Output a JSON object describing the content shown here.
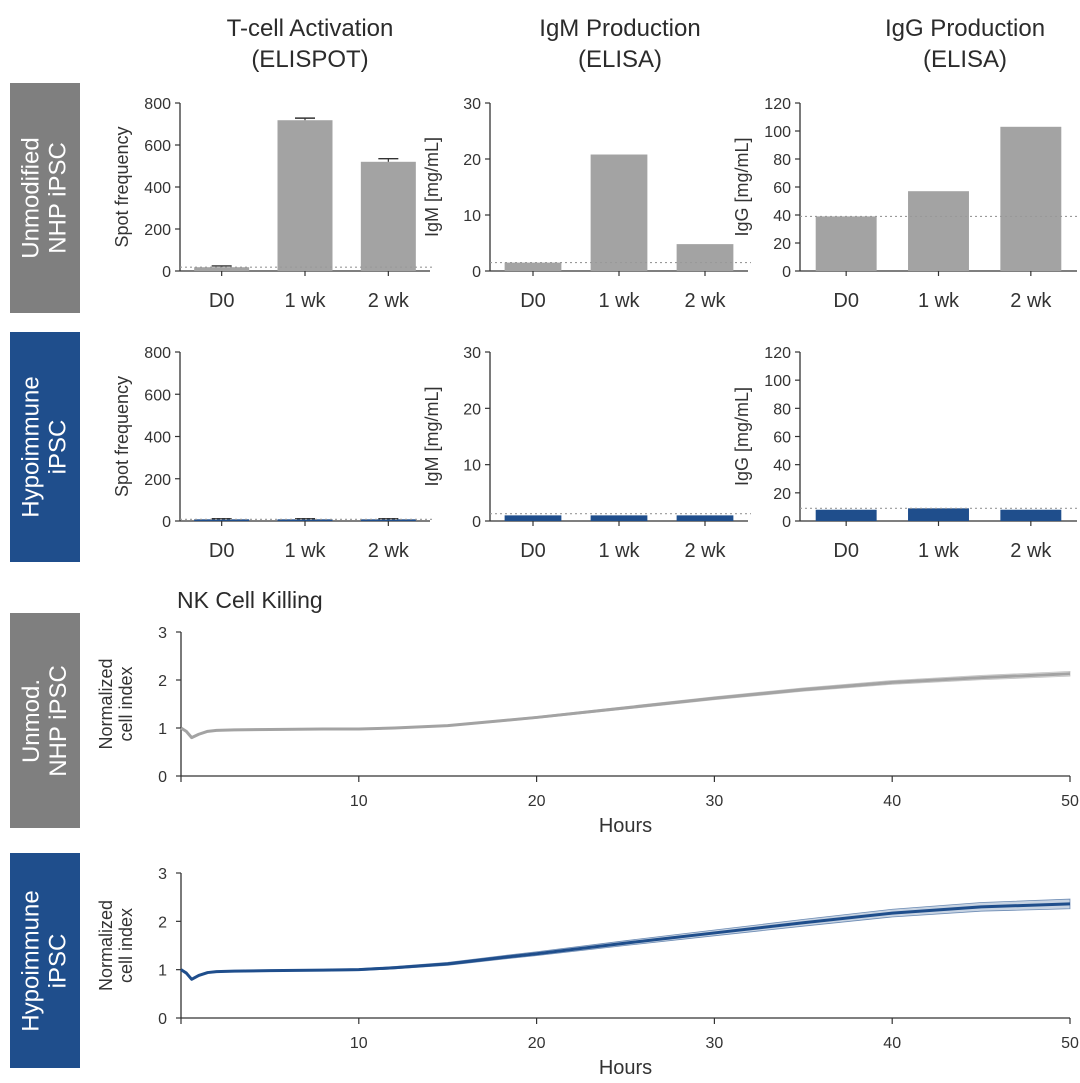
{
  "column_titles": [
    {
      "line1": "T-cell Activation",
      "line2": "(ELISPOT)"
    },
    {
      "line1": "IgM Production",
      "line2": "(ELISA)"
    },
    {
      "line1": "IgG Production",
      "line2": "(ELISA)"
    }
  ],
  "row_labels": [
    {
      "line1": "Unmodified",
      "line2": "NHP iPSC",
      "color": "#7f7f7f"
    },
    {
      "line1": "Hypoimmune",
      "line2": "iPSC",
      "color": "#1f4e8c"
    },
    {
      "line1": "Unmod.",
      "line2": "NHP iPSC",
      "color": "#7f7f7f"
    },
    {
      "line1": "Hypoimmune",
      "line2": "iPSC",
      "color": "#1f4e8c"
    }
  ],
  "nk_title": "NK Cell Killing",
  "colors": {
    "unmodified": "#a3a3a3",
    "hypoimmune": "#1f4e8c",
    "axis": "#333333",
    "reference_line": "#999999"
  },
  "chart_data": [
    {
      "type": "bar",
      "row": "Unmodified NHP iPSC",
      "col": 0,
      "ylabel": "Spot frequency",
      "categories": [
        "D0",
        "1 wk",
        "2 wk"
      ],
      "values": [
        18,
        718,
        520
      ],
      "errors": [
        6,
        10,
        15
      ],
      "ylim": [
        0,
        800
      ],
      "yticks": [
        0,
        200,
        400,
        600,
        800
      ],
      "reference_line": 18,
      "color": "#a3a3a3"
    },
    {
      "type": "bar",
      "row": "Unmodified NHP iPSC",
      "col": 1,
      "ylabel": "IgM [mg/mL]",
      "categories": [
        "D0",
        "1 wk",
        "2 wk"
      ],
      "values": [
        1.5,
        20.8,
        4.8
      ],
      "errors": [
        0,
        0,
        0
      ],
      "ylim": [
        0,
        30
      ],
      "yticks": [
        0,
        10,
        20,
        30
      ],
      "reference_line": 1.5,
      "color": "#a3a3a3"
    },
    {
      "type": "bar",
      "row": "Unmodified NHP iPSC",
      "col": 2,
      "ylabel": "IgG [mg/mL]",
      "categories": [
        "D0",
        "1 wk",
        "2 wk"
      ],
      "values": [
        39,
        57,
        103
      ],
      "errors": [
        0,
        0,
        0
      ],
      "ylim": [
        0,
        120
      ],
      "yticks": [
        0,
        20,
        40,
        60,
        80,
        100,
        120
      ],
      "reference_line": 39,
      "color": "#a3a3a3"
    },
    {
      "type": "bar",
      "row": "Hypoimmune iPSC",
      "col": 0,
      "ylabel": "Spot frequency",
      "categories": [
        "D0",
        "1 wk",
        "2 wk"
      ],
      "values": [
        8,
        8,
        8
      ],
      "errors": [
        3,
        3,
        3
      ],
      "ylim": [
        0,
        800
      ],
      "yticks": [
        0,
        200,
        400,
        600,
        800
      ],
      "reference_line": 8,
      "color": "#1f4e8c"
    },
    {
      "type": "bar",
      "row": "Hypoimmune iPSC",
      "col": 1,
      "ylabel": "IgM [mg/mL]",
      "categories": [
        "D0",
        "1 wk",
        "2 wk"
      ],
      "values": [
        1.0,
        1.0,
        1.0
      ],
      "errors": [
        0,
        0,
        0
      ],
      "ylim": [
        0,
        30
      ],
      "yticks": [
        0,
        10,
        20,
        30
      ],
      "reference_line": 1.3,
      "color": "#1f4e8c"
    },
    {
      "type": "bar",
      "row": "Hypoimmune iPSC",
      "col": 2,
      "ylabel": "IgG [mg/mL]",
      "categories": [
        "D0",
        "1 wk",
        "2 wk"
      ],
      "values": [
        8,
        9,
        8
      ],
      "errors": [
        0,
        0,
        0
      ],
      "ylim": [
        0,
        120
      ],
      "yticks": [
        0,
        20,
        40,
        60,
        80,
        100,
        120
      ],
      "reference_line": 9,
      "color": "#1f4e8c"
    },
    {
      "type": "line",
      "row": "Unmod. NHP iPSC",
      "ylabel": "Normalized cell index",
      "xlabel": "Hours",
      "xlim": [
        0,
        50
      ],
      "ylim": [
        0,
        3
      ],
      "xticks": [
        10,
        20,
        30,
        40,
        50
      ],
      "yticks": [
        0,
        1,
        2,
        3
      ],
      "color": "#a3a3a3",
      "x": [
        0,
        0.3,
        0.6,
        1,
        1.5,
        2,
        3,
        5,
        8,
        10,
        12,
        15,
        18,
        20,
        25,
        30,
        35,
        40,
        45,
        50
      ],
      "y": [
        1.0,
        0.93,
        0.8,
        0.87,
        0.93,
        0.95,
        0.96,
        0.97,
        0.98,
        0.98,
        1.0,
        1.05,
        1.15,
        1.22,
        1.42,
        1.62,
        1.8,
        1.95,
        2.05,
        2.13
      ],
      "error": 0.05
    },
    {
      "type": "line",
      "row": "Hypoimmune iPSC",
      "ylabel": "Normalized cell index",
      "xlabel": "Hours",
      "xlim": [
        0,
        50
      ],
      "ylim": [
        0,
        3
      ],
      "xticks": [
        10,
        20,
        30,
        40,
        50
      ],
      "yticks": [
        0,
        1,
        2,
        3
      ],
      "color": "#1f4e8c",
      "x": [
        0,
        0.3,
        0.6,
        1,
        1.5,
        2,
        3,
        5,
        8,
        10,
        12,
        15,
        18,
        20,
        25,
        30,
        35,
        40,
        45,
        50
      ],
      "y": [
        1.0,
        0.93,
        0.8,
        0.88,
        0.94,
        0.96,
        0.97,
        0.98,
        0.99,
        1.0,
        1.04,
        1.12,
        1.25,
        1.33,
        1.55,
        1.76,
        1.97,
        2.17,
        2.3,
        2.36
      ],
      "error": 0.1
    }
  ]
}
